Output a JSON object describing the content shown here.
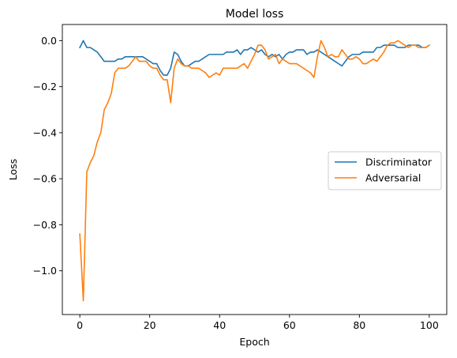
{
  "chart_data": {
    "type": "line",
    "title": "Model loss",
    "xlabel": "Epoch",
    "ylabel": "Loss",
    "xlim": [
      -5,
      105
    ],
    "ylim": [
      -1.19,
      0.07
    ],
    "xticks": [
      0,
      20,
      40,
      60,
      80,
      100
    ],
    "yticks": [
      0.0,
      -0.2,
      -0.4,
      -0.6,
      -0.8,
      -1.0
    ],
    "grid": false,
    "legend_position": "center-right",
    "series": [
      {
        "name": "Discriminator",
        "color": "#1f77b4",
        "x": [
          0,
          1,
          2,
          3,
          4,
          5,
          6,
          7,
          8,
          9,
          10,
          11,
          12,
          13,
          14,
          15,
          16,
          17,
          18,
          19,
          20,
          21,
          22,
          23,
          24,
          25,
          26,
          27,
          28,
          29,
          30,
          31,
          32,
          33,
          34,
          35,
          36,
          37,
          38,
          39,
          40,
          41,
          42,
          43,
          44,
          45,
          46,
          47,
          48,
          49,
          50,
          51,
          52,
          53,
          54,
          55,
          56,
          57,
          58,
          59,
          60,
          61,
          62,
          63,
          64,
          65,
          66,
          67,
          68,
          69,
          70,
          71,
          72,
          73,
          74,
          75,
          76,
          77,
          78,
          79,
          80,
          81,
          82,
          83,
          84,
          85,
          86,
          87,
          88,
          89,
          90,
          91,
          92,
          93,
          94,
          95,
          96,
          97,
          98,
          99,
          100
        ],
        "y": [
          -0.03,
          0.0,
          -0.03,
          -0.03,
          -0.04,
          -0.05,
          -0.07,
          -0.09,
          -0.09,
          -0.09,
          -0.09,
          -0.08,
          -0.08,
          -0.07,
          -0.07,
          -0.07,
          -0.07,
          -0.07,
          -0.07,
          -0.08,
          -0.09,
          -0.1,
          -0.1,
          -0.13,
          -0.15,
          -0.15,
          -0.12,
          -0.05,
          -0.06,
          -0.09,
          -0.11,
          -0.11,
          -0.1,
          -0.09,
          -0.09,
          -0.08,
          -0.07,
          -0.06,
          -0.06,
          -0.06,
          -0.06,
          -0.06,
          -0.05,
          -0.05,
          -0.05,
          -0.04,
          -0.06,
          -0.04,
          -0.04,
          -0.03,
          -0.04,
          -0.05,
          -0.04,
          -0.06,
          -0.07,
          -0.06,
          -0.07,
          -0.06,
          -0.08,
          -0.06,
          -0.05,
          -0.05,
          -0.04,
          -0.04,
          -0.04,
          -0.06,
          -0.05,
          -0.05,
          -0.04,
          -0.05,
          -0.06,
          -0.07,
          -0.08,
          -0.09,
          -0.1,
          -0.11,
          -0.09,
          -0.07,
          -0.06,
          -0.06,
          -0.06,
          -0.05,
          -0.05,
          -0.05,
          -0.05,
          -0.03,
          -0.03,
          -0.02,
          -0.02,
          -0.02,
          -0.02,
          -0.03,
          -0.03,
          -0.03,
          -0.02,
          -0.02,
          -0.02,
          -0.02,
          -0.03,
          -0.03,
          -0.02
        ]
      },
      {
        "name": "Adversarial",
        "color": "#ff7f0e",
        "x": [
          0,
          1,
          2,
          3,
          4,
          5,
          6,
          7,
          8,
          9,
          10,
          11,
          12,
          13,
          14,
          15,
          16,
          17,
          18,
          19,
          20,
          21,
          22,
          23,
          24,
          25,
          26,
          27,
          28,
          29,
          30,
          31,
          32,
          33,
          34,
          35,
          36,
          37,
          38,
          39,
          40,
          41,
          42,
          43,
          44,
          45,
          46,
          47,
          48,
          49,
          50,
          51,
          52,
          53,
          54,
          55,
          56,
          57,
          58,
          59,
          60,
          61,
          62,
          63,
          64,
          65,
          66,
          67,
          68,
          69,
          70,
          71,
          72,
          73,
          74,
          75,
          76,
          77,
          78,
          79,
          80,
          81,
          82,
          83,
          84,
          85,
          86,
          87,
          88,
          89,
          90,
          91,
          92,
          93,
          94,
          95,
          96,
          97,
          98,
          99,
          100
        ],
        "y": [
          -0.84,
          -1.13,
          -0.57,
          -0.53,
          -0.5,
          -0.44,
          -0.4,
          -0.3,
          -0.27,
          -0.23,
          -0.14,
          -0.12,
          -0.12,
          -0.12,
          -0.11,
          -0.09,
          -0.07,
          -0.09,
          -0.09,
          -0.09,
          -0.11,
          -0.12,
          -0.12,
          -0.15,
          -0.17,
          -0.17,
          -0.27,
          -0.12,
          -0.08,
          -0.1,
          -0.11,
          -0.11,
          -0.12,
          -0.12,
          -0.12,
          -0.13,
          -0.14,
          -0.16,
          -0.15,
          -0.14,
          -0.15,
          -0.12,
          -0.12,
          -0.12,
          -0.12,
          -0.12,
          -0.11,
          -0.1,
          -0.12,
          -0.09,
          -0.06,
          -0.02,
          -0.02,
          -0.04,
          -0.08,
          -0.07,
          -0.06,
          -0.1,
          -0.08,
          -0.09,
          -0.1,
          -0.1,
          -0.1,
          -0.11,
          -0.12,
          -0.13,
          -0.14,
          -0.16,
          -0.07,
          0.0,
          -0.03,
          -0.07,
          -0.06,
          -0.07,
          -0.07,
          -0.04,
          -0.06,
          -0.08,
          -0.08,
          -0.07,
          -0.08,
          -0.1,
          -0.1,
          -0.09,
          -0.08,
          -0.09,
          -0.07,
          -0.05,
          -0.02,
          -0.01,
          -0.01,
          0.0,
          -0.01,
          -0.02,
          -0.03,
          -0.02,
          -0.02,
          -0.03,
          -0.03,
          -0.03,
          -0.02
        ]
      }
    ]
  }
}
